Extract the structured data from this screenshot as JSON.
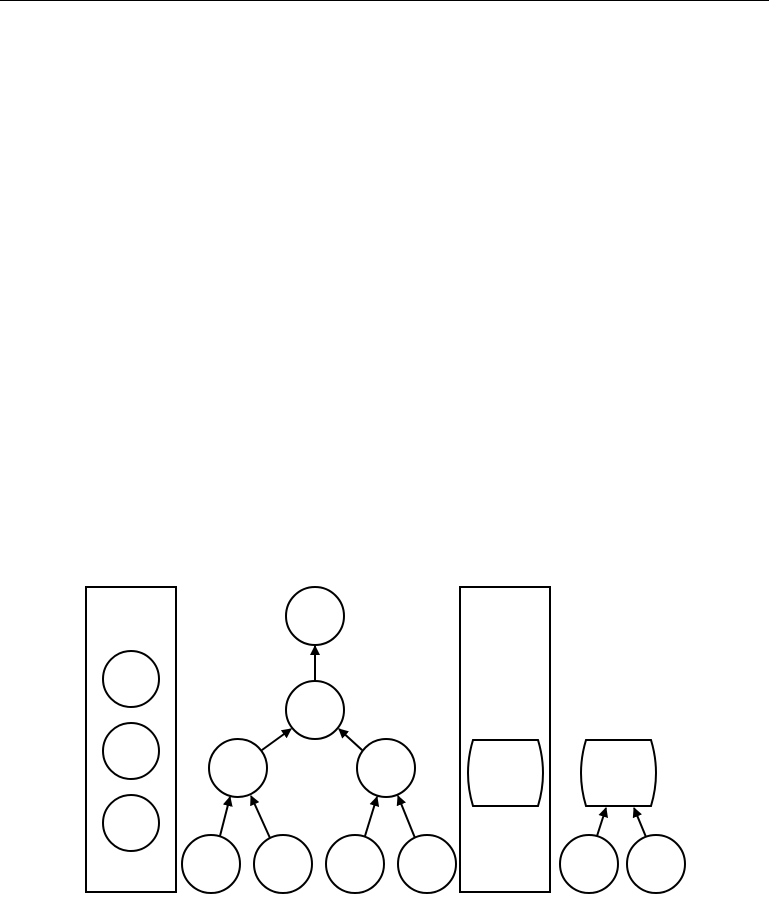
{
  "diagram": {
    "stroke_color": "#000000",
    "fill_color": "#ffffff",
    "groups": [
      {
        "id": "left-container",
        "contains": [
          "stack-node-1",
          "stack-node-2",
          "stack-node-3"
        ]
      },
      {
        "id": "tree",
        "root": "tree-root",
        "levels": 4
      },
      {
        "id": "right-container",
        "contains": [
          "right-rounded-node"
        ]
      },
      {
        "id": "small-tree",
        "root": "small-rounded-node"
      }
    ],
    "edges": [
      {
        "from": "tree-mid",
        "to": "tree-root"
      },
      {
        "from": "tree-left",
        "to": "tree-mid"
      },
      {
        "from": "tree-right",
        "to": "tree-mid"
      },
      {
        "from": "tree-leaf-1",
        "to": "tree-left"
      },
      {
        "from": "tree-leaf-2",
        "to": "tree-left"
      },
      {
        "from": "tree-leaf-3",
        "to": "tree-right"
      },
      {
        "from": "tree-leaf-4",
        "to": "tree-right"
      },
      {
        "from": "small-leaf-1",
        "to": "small-rounded-node"
      },
      {
        "from": "small-leaf-2",
        "to": "small-rounded-node"
      }
    ]
  }
}
